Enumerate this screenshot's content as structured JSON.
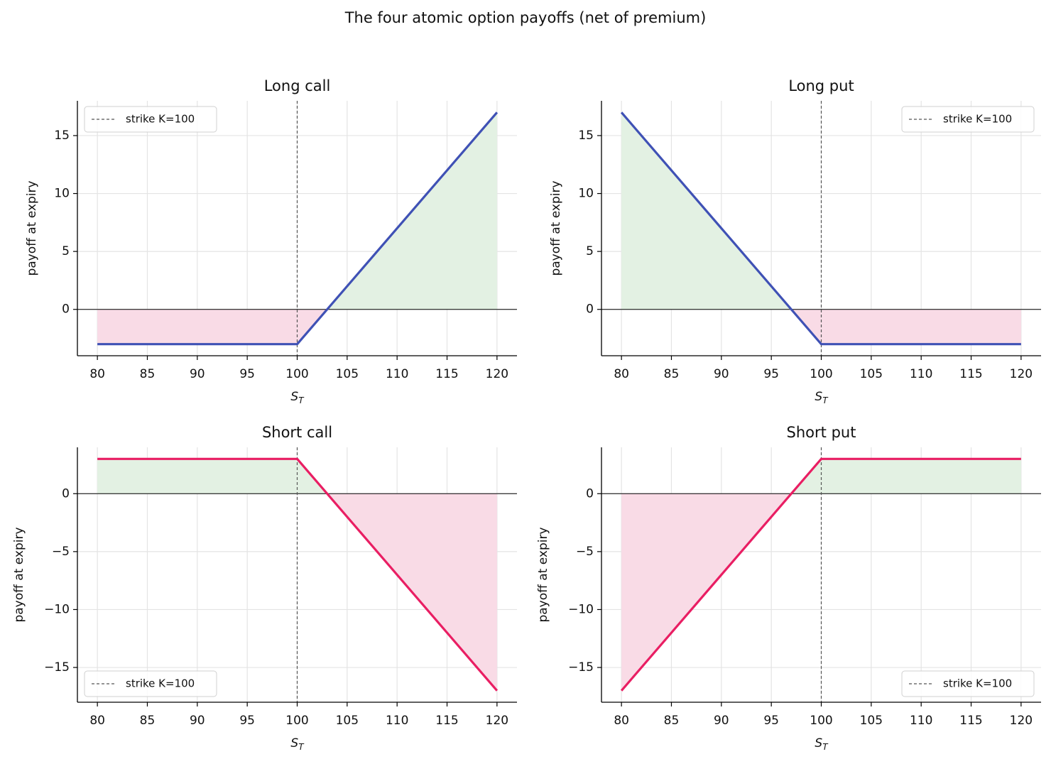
{
  "title": "The four atomic option payoffs (net of premium)",
  "chart_data": [
    {
      "type": "line",
      "title": "Long call",
      "xlabel": "S",
      "xlabel_subscript": "T",
      "ylabel": "payoff at expiry",
      "x": [
        80,
        100,
        120
      ],
      "series": [
        {
          "color": "#3f51b5",
          "values": [
            -3,
            -3,
            17
          ]
        }
      ],
      "strike": 100,
      "strike_label": "strike K=100",
      "legend": "upper left",
      "xlim": [
        78,
        122
      ],
      "xticks": [
        80,
        85,
        90,
        95,
        100,
        105,
        110,
        115,
        120
      ],
      "ylim": [
        -4,
        18
      ],
      "yticks": [
        0,
        5,
        10,
        15
      ],
      "grid": true,
      "fill_colors": {
        "positive": "#e3f1e3",
        "negative": "#f9dbe6"
      }
    },
    {
      "type": "line",
      "title": "Long put",
      "xlabel": "S",
      "xlabel_subscript": "T",
      "ylabel": "payoff at expiry",
      "x": [
        80,
        100,
        120
      ],
      "series": [
        {
          "color": "#3f51b5",
          "values": [
            17,
            -3,
            -3
          ]
        }
      ],
      "strike": 100,
      "strike_label": "strike K=100",
      "legend": "upper right",
      "xlim": [
        78,
        122
      ],
      "xticks": [
        80,
        85,
        90,
        95,
        100,
        105,
        110,
        115,
        120
      ],
      "ylim": [
        -4,
        18
      ],
      "yticks": [
        0,
        5,
        10,
        15
      ],
      "grid": true,
      "fill_colors": {
        "positive": "#e3f1e3",
        "negative": "#f9dbe6"
      }
    },
    {
      "type": "line",
      "title": "Short call",
      "xlabel": "S",
      "xlabel_subscript": "T",
      "ylabel": "payoff at expiry",
      "x": [
        80,
        100,
        120
      ],
      "series": [
        {
          "color": "#e91e63",
          "values": [
            3,
            3,
            -17
          ]
        }
      ],
      "strike": 100,
      "strike_label": "strike K=100",
      "legend": "lower left",
      "xlim": [
        78,
        122
      ],
      "xticks": [
        80,
        85,
        90,
        95,
        100,
        105,
        110,
        115,
        120
      ],
      "ylim": [
        -18,
        4
      ],
      "yticks": [
        {
          "value": -15,
          "label": "−15"
        },
        {
          "value": -10,
          "label": "−10"
        },
        {
          "value": -5,
          "label": "−5"
        },
        0
      ],
      "grid": true,
      "fill_colors": {
        "positive": "#e3f1e3",
        "negative": "#f9dbe6"
      }
    },
    {
      "type": "line",
      "title": "Short put",
      "xlabel": "S",
      "xlabel_subscript": "T",
      "ylabel": "payoff at expiry",
      "x": [
        80,
        100,
        120
      ],
      "series": [
        {
          "color": "#e91e63",
          "values": [
            -17,
            3,
            3
          ]
        }
      ],
      "strike": 100,
      "strike_label": "strike K=100",
      "legend": "lower right",
      "xlim": [
        78,
        122
      ],
      "xticks": [
        80,
        85,
        90,
        95,
        100,
        105,
        110,
        115,
        120
      ],
      "ylim": [
        -18,
        4
      ],
      "yticks": [
        {
          "value": -15,
          "label": "−15"
        },
        {
          "value": -10,
          "label": "−10"
        },
        {
          "value": -5,
          "label": "−5"
        },
        0
      ],
      "grid": true,
      "fill_colors": {
        "positive": "#e3f1e3",
        "negative": "#f9dbe6"
      }
    }
  ]
}
